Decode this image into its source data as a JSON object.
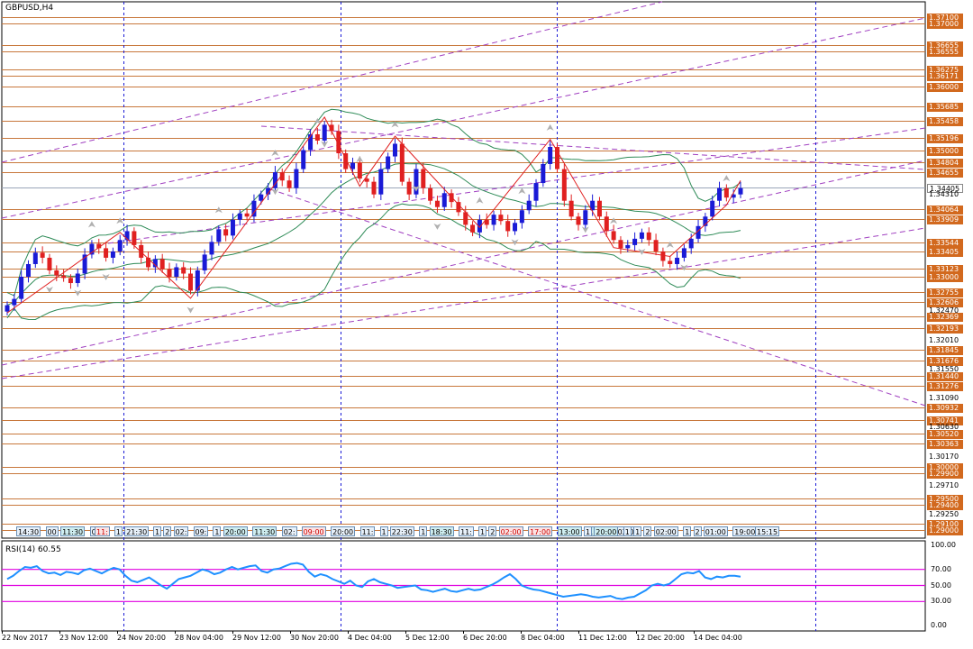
{
  "header": {
    "symbol": "GBPUSD,H4"
  },
  "price_scale": {
    "labels": [
      {
        "text": "1.37100",
        "style": "box"
      },
      {
        "text": "1.37000",
        "style": "box"
      },
      {
        "text": "1.36655",
        "style": "box"
      },
      {
        "text": "1.36555",
        "style": "box"
      },
      {
        "text": "1.36275",
        "style": "box"
      },
      {
        "text": "1.36171",
        "style": "box"
      },
      {
        "text": "1.36000",
        "style": "box"
      },
      {
        "text": "1.35685",
        "style": "box"
      },
      {
        "text": "1.35458",
        "style": "box"
      },
      {
        "text": "1.35196",
        "style": "box"
      },
      {
        "text": "1.35000",
        "style": "box"
      },
      {
        "text": "1.34804",
        "style": "box"
      },
      {
        "text": "1.34655",
        "style": "box"
      },
      {
        "text": "1.34405",
        "style": "current"
      },
      {
        "text": "1.34310",
        "style": "plain"
      },
      {
        "text": "1.34064",
        "style": "box"
      },
      {
        "text": "1.33909",
        "style": "box"
      },
      {
        "text": "1.33544",
        "style": "box"
      },
      {
        "text": "1.33405",
        "style": "box"
      },
      {
        "text": "1.33123",
        "style": "box"
      },
      {
        "text": "1.33000",
        "style": "box"
      },
      {
        "text": "1.32755",
        "style": "box"
      },
      {
        "text": "1.32606",
        "style": "box"
      },
      {
        "text": "1.32470",
        "style": "plain"
      },
      {
        "text": "1.32369",
        "style": "box"
      },
      {
        "text": "1.32193",
        "style": "box"
      },
      {
        "text": "1.32010",
        "style": "plain"
      },
      {
        "text": "1.31845",
        "style": "box"
      },
      {
        "text": "1.31676",
        "style": "box"
      },
      {
        "text": "1.31550",
        "style": "plain"
      },
      {
        "text": "1.31440",
        "style": "box"
      },
      {
        "text": "1.31276",
        "style": "box"
      },
      {
        "text": "1.31090",
        "style": "plain"
      },
      {
        "text": "1.30932",
        "style": "box"
      },
      {
        "text": "1.30741",
        "style": "box"
      },
      {
        "text": "1.30630",
        "style": "plain"
      },
      {
        "text": "1.30520",
        "style": "box"
      },
      {
        "text": "1.30363",
        "style": "box"
      },
      {
        "text": "1.30170",
        "style": "plain"
      },
      {
        "text": "1.30000",
        "style": "box"
      },
      {
        "text": "1.29900",
        "style": "box"
      },
      {
        "text": "1.29710",
        "style": "plain"
      },
      {
        "text": "1.29500",
        "style": "box"
      },
      {
        "text": "1.29400",
        "style": "box"
      },
      {
        "text": "1.29250",
        "style": "plain"
      },
      {
        "text": "1.29100",
        "style": "box"
      },
      {
        "text": "1.29000",
        "style": "box"
      }
    ]
  },
  "session_tags": [
    {
      "text": "14:30",
      "style": "normal"
    },
    {
      "text": "00",
      "style": "normal"
    },
    {
      "text": "11:30",
      "style": "teal"
    },
    {
      "text": "00",
      "style": "normal"
    },
    {
      "text": "11:",
      "style": "red"
    },
    {
      "text": "1",
      "style": "normal"
    },
    {
      "text": "21:30",
      "style": "normal"
    },
    {
      "text": "1",
      "style": "normal"
    },
    {
      "text": "2",
      "style": "normal"
    },
    {
      "text": "02:",
      "style": "normal"
    },
    {
      "text": "09:",
      "style": "normal"
    },
    {
      "text": "1",
      "style": "normal"
    },
    {
      "text": "20:00",
      "style": "teal"
    },
    {
      "text": "11:30",
      "style": "teal"
    },
    {
      "text": "02:",
      "style": "normal"
    },
    {
      "text": "09:00",
      "style": "red"
    },
    {
      "text": "20:00",
      "style": "normal"
    },
    {
      "text": "11:",
      "style": "normal"
    },
    {
      "text": "1",
      "style": "normal"
    },
    {
      "text": "22:30",
      "style": "normal"
    },
    {
      "text": "1",
      "style": "normal"
    },
    {
      "text": "18:30",
      "style": "teal"
    },
    {
      "text": "11:",
      "style": "normal"
    },
    {
      "text": "1",
      "style": "normal"
    },
    {
      "text": "2",
      "style": "normal"
    },
    {
      "text": "02:00",
      "style": "red"
    },
    {
      "text": "17:00",
      "style": "red"
    },
    {
      "text": "13:00",
      "style": "teal"
    },
    {
      "text": "11:30",
      "style": "teal"
    },
    {
      "text": "02:01",
      "style": "normal"
    },
    {
      "text": "1",
      "style": "normal"
    },
    {
      "text": "20:00",
      "style": "teal"
    },
    {
      "text": "1",
      "style": "normal"
    },
    {
      "text": "1",
      "style": "normal"
    },
    {
      "text": "2",
      "style": "normal"
    },
    {
      "text": "02:00",
      "style": "normal"
    },
    {
      "text": "1",
      "style": "normal"
    },
    {
      "text": "2",
      "style": "normal"
    },
    {
      "text": "01:00",
      "style": "normal"
    },
    {
      "text": "19:00",
      "style": "normal"
    },
    {
      "text": "15:15",
      "style": "normal"
    }
  ],
  "rsi": {
    "title": "RSI(14) 60.55",
    "scale": [
      "100.00",
      "70.00",
      "50.00",
      "30.00",
      "0.00"
    ],
    "levels": [
      70,
      50,
      30
    ],
    "values": [
      58,
      62,
      68,
      73,
      72,
      74,
      68,
      65,
      66,
      63,
      67,
      66,
      64,
      69,
      71,
      68,
      65,
      69,
      72,
      70,
      62,
      56,
      54,
      57,
      60,
      55,
      50,
      46,
      52,
      58,
      60,
      62,
      66,
      70,
      68,
      64,
      66,
      70,
      73,
      70,
      72,
      74,
      75,
      68,
      66,
      70,
      71,
      74,
      77,
      78,
      76,
      67,
      61,
      64,
      62,
      58,
      55,
      52,
      56,
      50,
      48,
      55,
      58,
      54,
      52,
      50,
      47,
      48,
      49,
      50,
      45,
      44,
      42,
      44,
      46,
      43,
      42,
      44,
      46,
      44,
      45,
      48,
      51,
      55,
      60,
      64,
      58,
      50,
      47,
      45,
      44,
      42,
      40,
      38,
      36,
      37,
      38,
      39,
      38,
      36,
      35,
      36,
      37,
      34,
      33,
      35,
      36,
      40,
      44,
      50,
      52,
      50,
      52,
      58,
      64,
      66,
      65,
      68,
      60,
      58,
      61,
      60,
      62,
      62,
      61
    ]
  },
  "time_axis": {
    "labels": [
      "22 Nov 2017",
      "23 Nov 12:00",
      "24 Nov 20:00",
      "28 Nov 04:00",
      "29 Nov 12:00",
      "30 Nov 20:00",
      "4 Dec 04:00",
      "5 Dec 12:00",
      "6 Dec 20:00",
      "8 Dec 04:00",
      "11 Dec 12:00",
      "12 Dec 20:00",
      "14 Dec 04:00"
    ]
  },
  "colors": {
    "bull": "#1a1ad6",
    "bear": "#e02020",
    "level_line": "#c8783c",
    "fan_line": "#a040c0",
    "zigzag": "#e02020",
    "bands": "#2e8b57",
    "separator": "#1a1ad6",
    "rsi_line": "#1e90ff",
    "rsi_level": "#e000e0"
  },
  "chart_data": {
    "type": "candlestick",
    "symbol": "GBPUSD",
    "timeframe": "H4",
    "ylim": [
      1.2885,
      1.372
    ],
    "close": [
      1.3255,
      1.3265,
      1.33,
      1.332,
      1.3338,
      1.333,
      1.331,
      1.3302,
      1.3298,
      1.329,
      1.3305,
      1.3335,
      1.3352,
      1.3345,
      1.333,
      1.334,
      1.3358,
      1.3372,
      1.335,
      1.333,
      1.3315,
      1.3328,
      1.3312,
      1.33,
      1.3315,
      1.3305,
      1.3278,
      1.331,
      1.3335,
      1.3355,
      1.3375,
      1.3365,
      1.339,
      1.34,
      1.3395,
      1.342,
      1.343,
      1.344,
      1.3465,
      1.3452,
      1.344,
      1.347,
      1.35,
      1.3525,
      1.3515,
      1.354,
      1.353,
      1.3495,
      1.347,
      1.348,
      1.3455,
      1.345,
      1.343,
      1.347,
      1.349,
      1.351,
      1.345,
      1.343,
      1.347,
      1.344,
      1.342,
      1.341,
      1.3432,
      1.3418,
      1.3402,
      1.3382,
      1.337,
      1.339,
      1.3382,
      1.3398,
      1.3388,
      1.3372,
      1.3385,
      1.3405,
      1.342,
      1.3448,
      1.3478,
      1.3505,
      1.347,
      1.342,
      1.3395,
      1.3382,
      1.3405,
      1.342,
      1.3395,
      1.3372,
      1.3358,
      1.3345,
      1.335,
      1.336,
      1.337,
      1.3358,
      1.334,
      1.3325,
      1.332,
      1.333,
      1.3345,
      1.336,
      1.338,
      1.3395,
      1.342,
      1.344,
      1.3425,
      1.343,
      1.344
    ]
  }
}
